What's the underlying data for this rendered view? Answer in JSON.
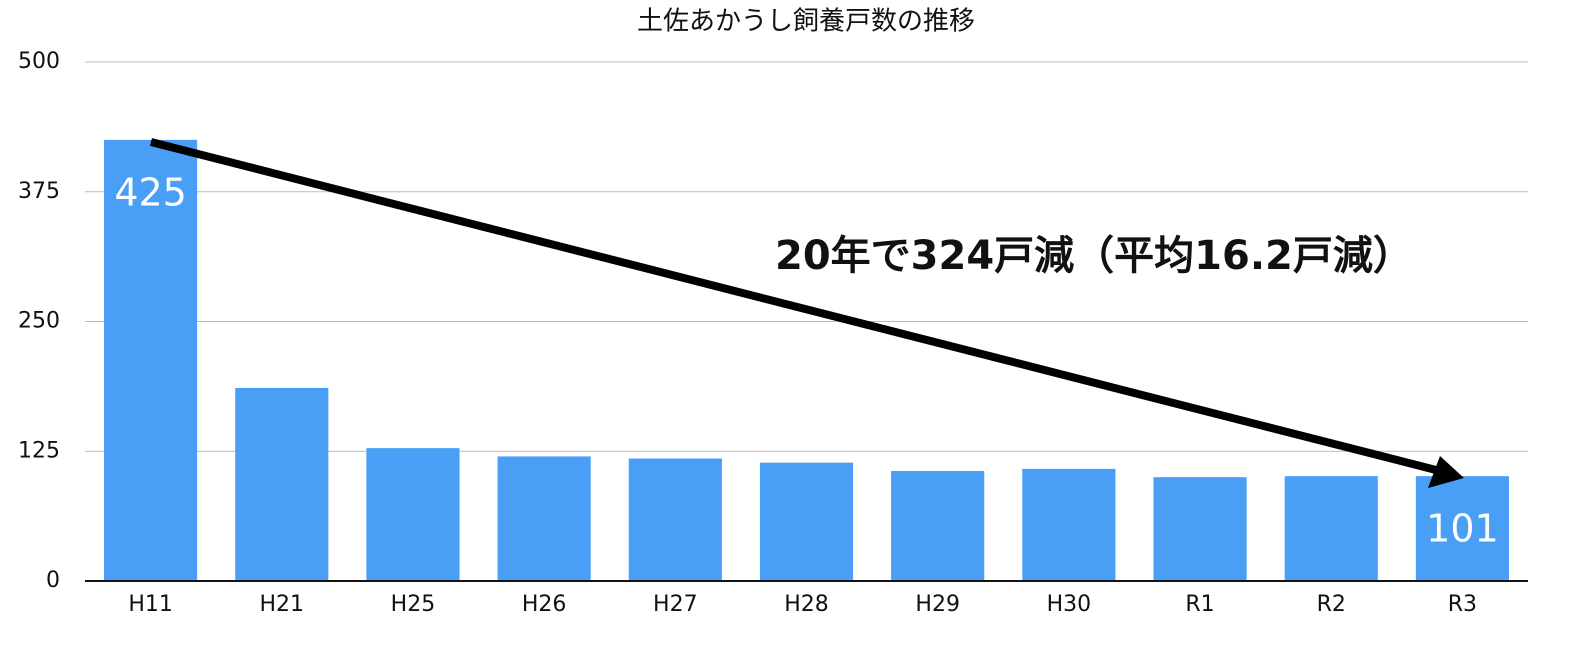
{
  "chart_data": {
    "type": "bar",
    "title": "土佐あかうし飼養戸数の推移",
    "categories": [
      "H11",
      "H21",
      "H25",
      "H26",
      "H27",
      "H28",
      "H29",
      "H30",
      "R1",
      "R2",
      "R3"
    ],
    "values": [
      425,
      186,
      128,
      120,
      118,
      114,
      106,
      108,
      100,
      101,
      101
    ],
    "value_labels": [
      "425",
      null,
      null,
      null,
      null,
      null,
      null,
      null,
      null,
      null,
      "101"
    ],
    "color": "#489ff5",
    "ylim": [
      0,
      500
    ],
    "yticks": [
      0,
      125,
      250,
      375,
      500
    ],
    "grid": true,
    "annotation": "20年で324戸減（平均16.2戸減）"
  }
}
